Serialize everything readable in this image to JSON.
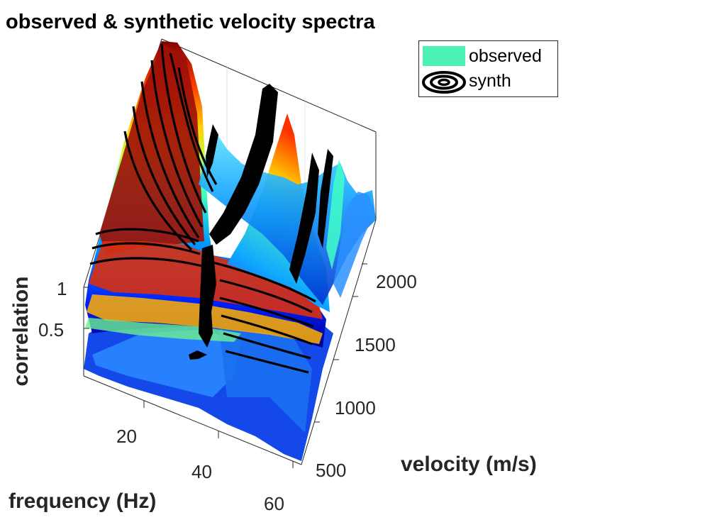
{
  "chart_data": {
    "type": "surface",
    "title": "observed & synthetic velocity spectra",
    "xlabel": "frequency (Hz)",
    "ylabel": "velocity (m/s)",
    "zlabel": "correlation",
    "xlim": [
      2,
      60
    ],
    "ylim": [
      300,
      2350
    ],
    "zlim": [
      0,
      1.2
    ],
    "x_ticks": [
      "20",
      "40",
      "60"
    ],
    "y_ticks": [
      "500",
      "1000",
      "1500",
      "2000"
    ],
    "z_ticks": [
      "0.5",
      "1"
    ],
    "grid": true,
    "legend_position": "top-right",
    "legend": [
      {
        "name": "observed",
        "style": "surface",
        "color": "#4cf2b4"
      },
      {
        "name": "synth",
        "style": "contour",
        "color": "#000000"
      }
    ],
    "colormap": "jet",
    "series": [
      {
        "name": "observed",
        "representation": "correlation surface over frequency and velocity"
      },
      {
        "name": "synth",
        "representation": "black contour lines of synthetic correlation"
      }
    ]
  }
}
